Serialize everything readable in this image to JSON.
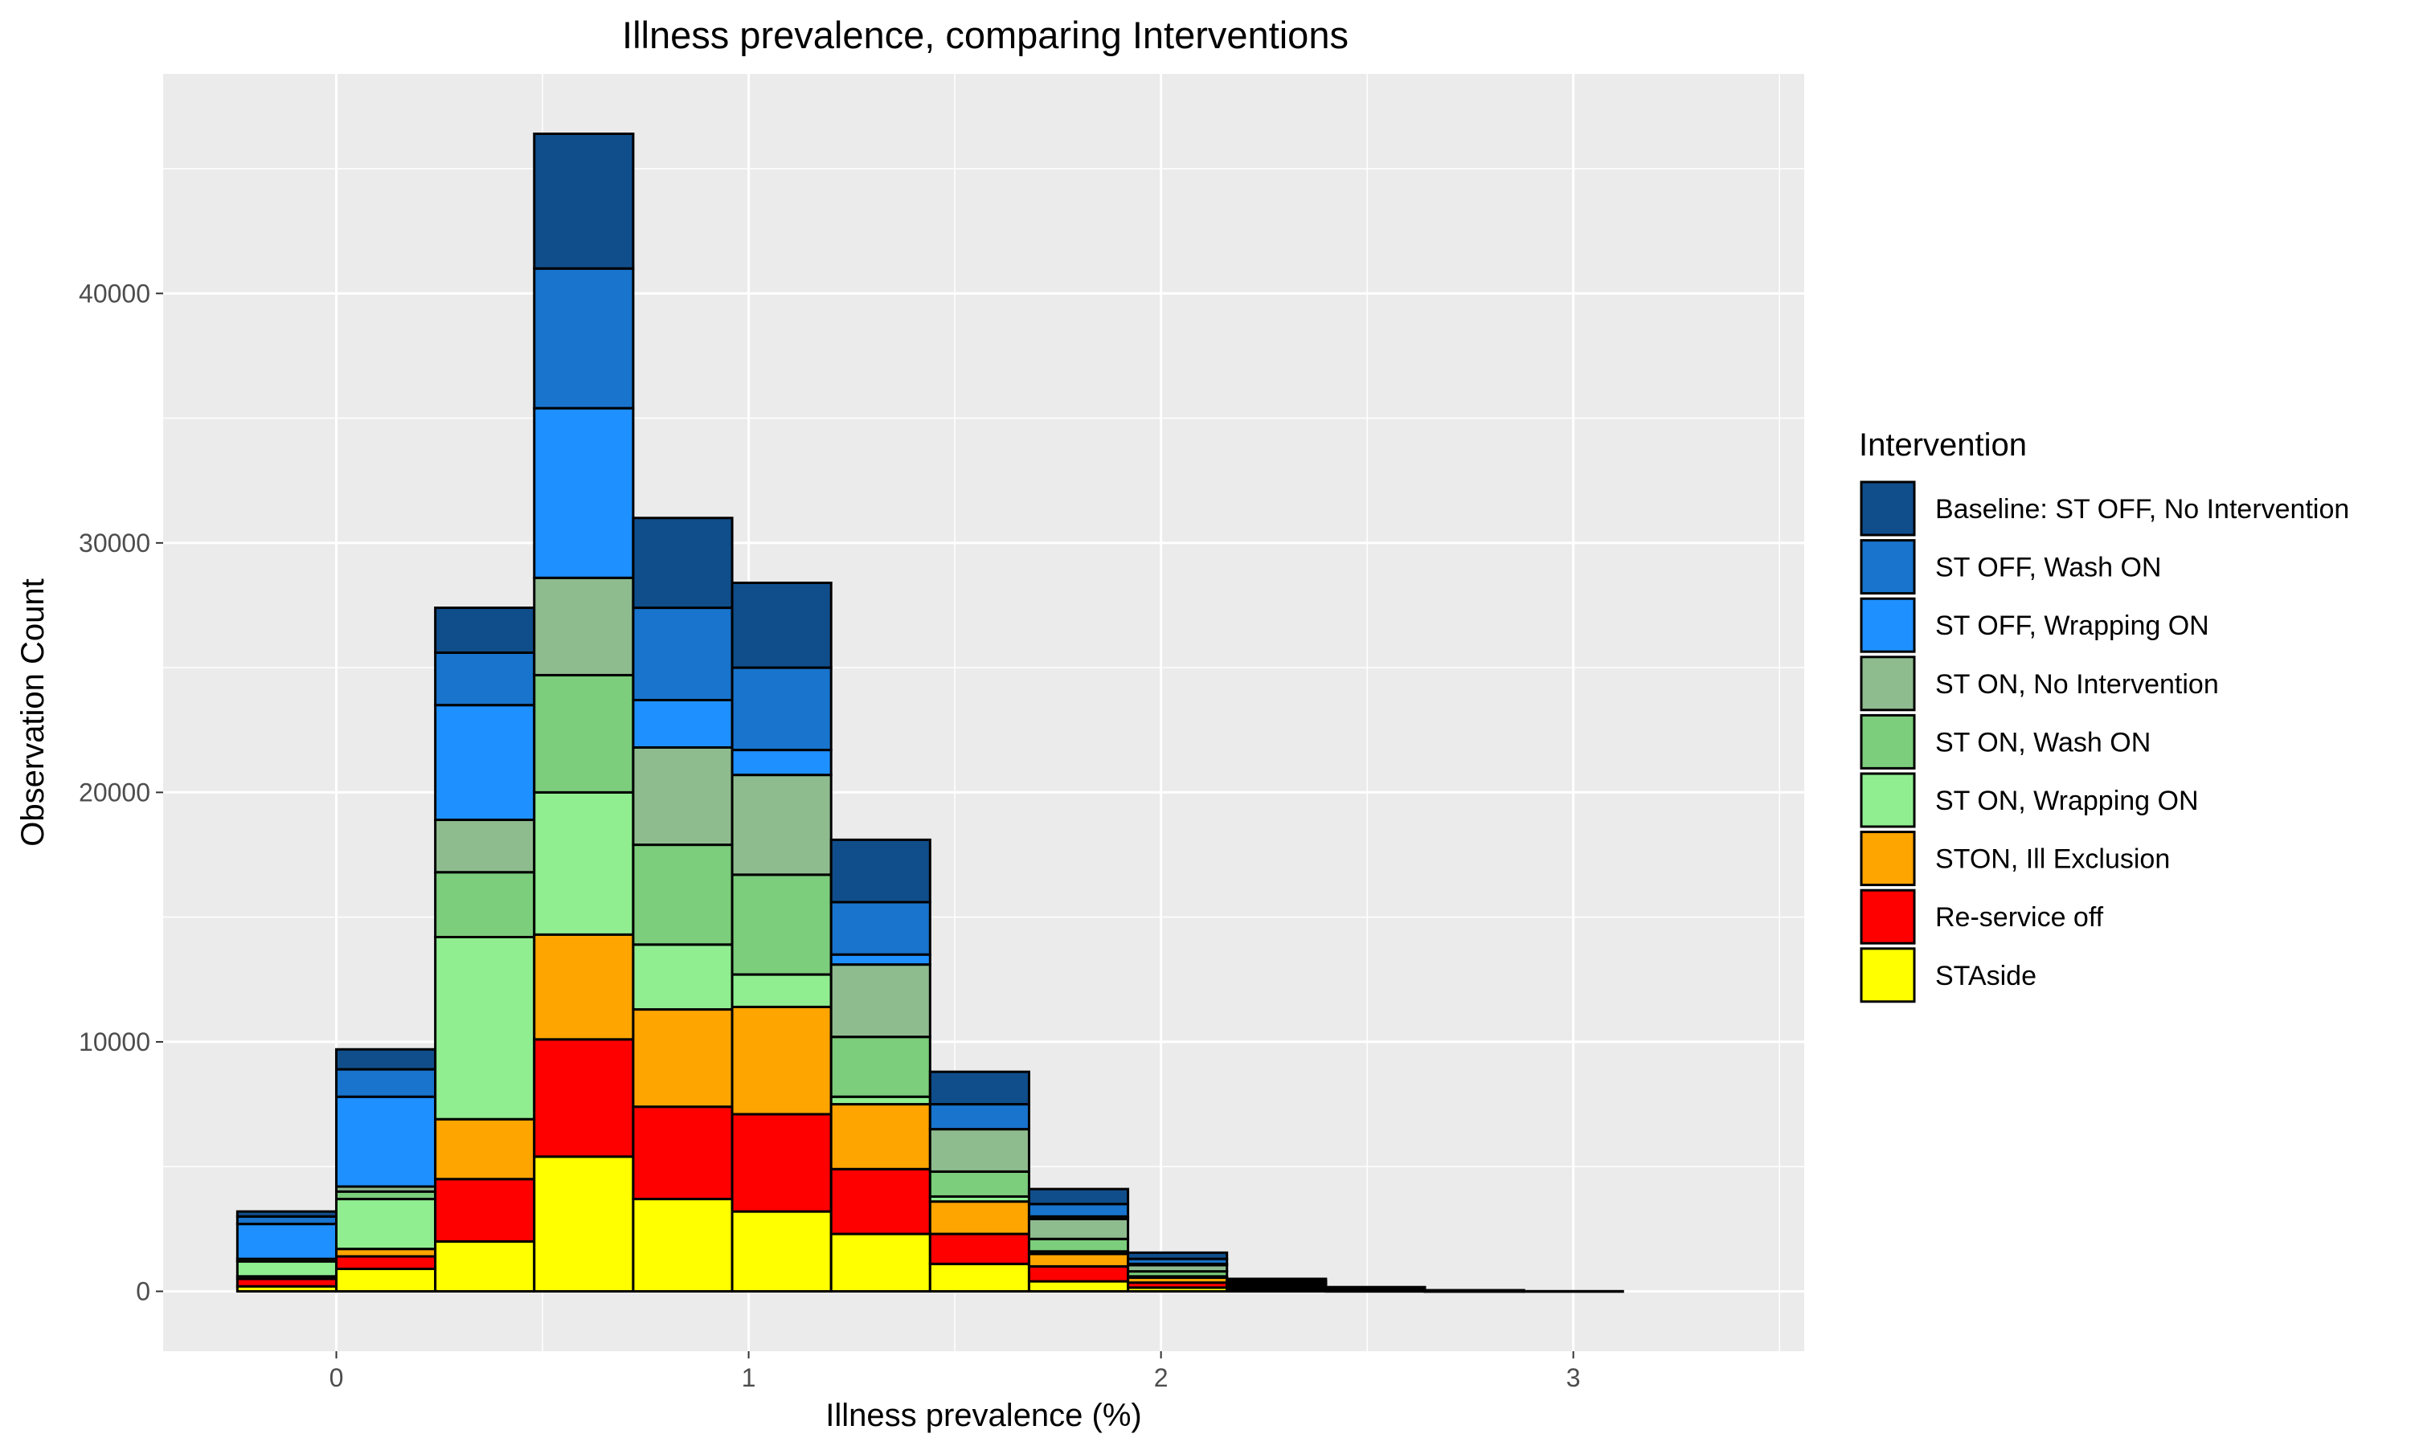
{
  "chart_data": {
    "type": "bar",
    "stacked": true,
    "histogram": true,
    "title": "Illness prevalence, comparing Interventions",
    "xlabel": "Illness prevalence (%)",
    "ylabel": "Observation Count",
    "xlim": [
      -0.42,
      3.56
    ],
    "ylim": [
      -2400,
      48800
    ],
    "x_ticks": [
      0,
      1,
      2,
      3
    ],
    "x_tick_labels": [
      "0",
      "1",
      "2",
      "3"
    ],
    "y_ticks": [
      0,
      10000,
      20000,
      30000,
      40000
    ],
    "y_tick_labels": [
      "0",
      "10000",
      "20000",
      "30000",
      "40000"
    ],
    "grid": true,
    "legend_title": "Intervention",
    "legend_position": "right",
    "bin_width": 0.24,
    "bins": [
      [
        -0.24,
        0.0
      ],
      [
        0.0,
        0.24
      ],
      [
        0.24,
        0.48
      ],
      [
        0.48,
        0.72
      ],
      [
        0.72,
        0.96
      ],
      [
        0.96,
        1.2
      ],
      [
        1.2,
        1.44
      ],
      [
        1.44,
        1.68
      ],
      [
        1.68,
        1.92
      ],
      [
        1.92,
        2.16
      ],
      [
        2.16,
        2.4
      ],
      [
        2.4,
        2.64
      ],
      [
        2.64,
        2.88
      ],
      [
        2.88,
        3.12
      ],
      [
        3.12,
        3.36
      ]
    ],
    "series": [
      {
        "name": "STAside",
        "color": "#ffff00",
        "values": [
          200,
          900,
          2000,
          5400,
          3700,
          3200,
          2300,
          1100,
          400,
          150,
          40,
          10,
          0,
          0,
          0
        ]
      },
      {
        "name": "Re-service off",
        "color": "#ff0000",
        "values": [
          300,
          500,
          2500,
          4700,
          3700,
          3900,
          2600,
          1200,
          600,
          200,
          60,
          20,
          5,
          0,
          0
        ]
      },
      {
        "name": "STON, Ill Exclusion",
        "color": "#ffa500",
        "values": [
          100,
          300,
          2400,
          4200,
          3900,
          4300,
          2600,
          1300,
          500,
          200,
          60,
          20,
          5,
          0,
          0
        ]
      },
      {
        "name": "ST ON, Wrapping ON",
        "color": "#90ee90",
        "values": [
          600,
          2000,
          7300,
          5700,
          2600,
          1300,
          300,
          200,
          100,
          50,
          20,
          5,
          0,
          0,
          0
        ]
      },
      {
        "name": "ST ON, Wash ON",
        "color": "#7ccd7c",
        "values": [
          100,
          300,
          2600,
          4700,
          4000,
          4000,
          2400,
          1000,
          500,
          200,
          60,
          20,
          5,
          0,
          0
        ]
      },
      {
        "name": "ST ON, No Intervention",
        "color": "#8fbc8f",
        "values": [
          0,
          200,
          2100,
          3900,
          3900,
          4000,
          2900,
          1700,
          800,
          250,
          80,
          30,
          10,
          0,
          0
        ]
      },
      {
        "name": "ST OFF, Wrapping ON",
        "color": "#1e90ff",
        "values": [
          1400,
          3600,
          4600,
          6800,
          1900,
          1000,
          400,
          0,
          100,
          50,
          20,
          5,
          0,
          0,
          0
        ]
      },
      {
        "name": "ST OFF, Wash ON",
        "color": "#1874cd",
        "values": [
          300,
          1100,
          2100,
          5600,
          3700,
          3300,
          2100,
          1000,
          500,
          200,
          80,
          30,
          10,
          0,
          0
        ]
      },
      {
        "name": "Baseline: ST OFF, No Intervention",
        "color": "#104e8b",
        "values": [
          200,
          800,
          1800,
          5400,
          3600,
          3400,
          2500,
          1300,
          600,
          250,
          80,
          30,
          10,
          5,
          0
        ]
      }
    ]
  }
}
